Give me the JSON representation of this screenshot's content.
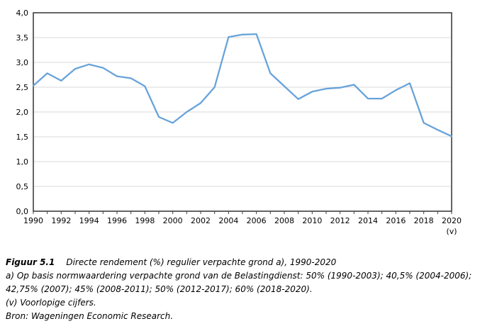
{
  "chart_data": {
    "type": "line",
    "title": "Directe rendement (%) regulier verpachte grond a), 1990-2020",
    "x": [
      1990,
      1991,
      1992,
      1993,
      1994,
      1995,
      1996,
      1997,
      1998,
      1999,
      2000,
      2001,
      2002,
      2003,
      2004,
      2005,
      2006,
      2007,
      2008,
      2009,
      2010,
      2011,
      2012,
      2013,
      2014,
      2015,
      2016,
      2017,
      2018,
      2019,
      2020
    ],
    "series": [
      {
        "name": "Directe rendement (%) regulier verpachte grond",
        "values": [
          2.53,
          2.78,
          2.63,
          2.87,
          2.96,
          2.89,
          2.72,
          2.68,
          2.52,
          1.9,
          1.78,
          2.0,
          2.18,
          2.5,
          3.51,
          3.56,
          3.57,
          2.78,
          2.52,
          2.26,
          2.41,
          2.47,
          2.49,
          2.55,
          2.27,
          2.27,
          2.44,
          2.58,
          1.78,
          1.64,
          1.51
        ]
      }
    ],
    "xlabel": "",
    "ylabel": "",
    "ylim": [
      0,
      4
    ],
    "ytick_step": 0.5,
    "ytick_labels": [
      "0,0",
      "0,5",
      "1,0",
      "1,5",
      "2,0",
      "2,5",
      "3,0",
      "3,5",
      "4,0"
    ],
    "xtick_labels": [
      "1990",
      "1992",
      "1994",
      "1996",
      "1998",
      "2000",
      "2002",
      "2004",
      "2006",
      "2008",
      "2010",
      "2012",
      "2014",
      "2016",
      "2018",
      "2020"
    ],
    "x_suffix_label": "(v)",
    "grid": "horizontal",
    "legend": "none",
    "colors": {
      "line": "#68A3DA",
      "grid": "#D9D9D9",
      "axis": "#3F3F3F",
      "text": "#000000",
      "background": "#FFFFFF"
    }
  },
  "caption": {
    "figure_label": "Figuur 5.1",
    "figure_title": "Directe rendement (%) regulier verpachte grond a), 1990-2020",
    "footnote_a": "a) Op basis normwaardering verpachte grond van de Belastingdienst: 50% (1990-2003); 40,5% (2004-2006); 42,75% (2007); 45% (2008-2011); 50% (2012-2017); 60% (2018-2020).",
    "footnote_v": "(v) Voorlopige cijfers.",
    "source": "Bron: Wageningen Economic Research."
  }
}
